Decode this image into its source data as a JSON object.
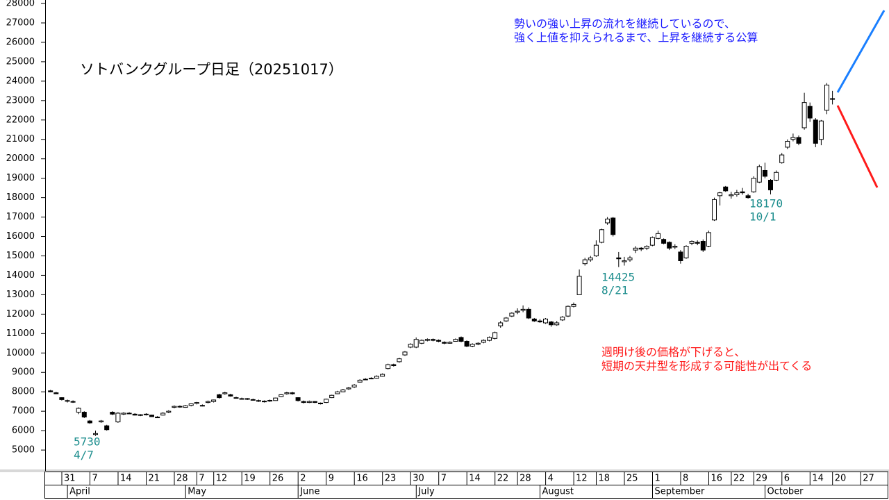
{
  "chart_data": {
    "type": "candlestick",
    "title": "ソトバンクグループ日足（20251017）",
    "annotations": [
      [
        "5730",
        "4/7"
      ],
      [
        "14425",
        "8/21"
      ],
      [
        "18170",
        "10/1"
      ]
    ],
    "comment_up": [
      "勢いの強い上昇の流れを継続しているので、",
      "強く上値を抑えられるまで、上昇を継続する公算"
    ],
    "comment_down": [
      "週明け後の価格が下げると、",
      "短期の天井型を形成する可能性が出てくる"
    ],
    "categories": [
      "3/26",
      "3/27",
      "3/28",
      "3/31",
      "4/1",
      "4/2",
      "4/3",
      "4/4",
      "4/7",
      "4/8",
      "4/9",
      "4/10",
      "4/11",
      "4/14",
      "4/15",
      "4/16",
      "4/17",
      "4/18",
      "4/21",
      "4/22",
      "4/23",
      "4/24",
      "4/25",
      "4/28",
      "4/30",
      "5/1",
      "5/2",
      "5/7",
      "5/8",
      "5/9",
      "5/12",
      "5/13",
      "5/14",
      "5/15",
      "5/16",
      "5/19",
      "5/20",
      "5/21",
      "5/22",
      "5/23",
      "5/26",
      "5/27",
      "5/28",
      "5/29",
      "5/30",
      "6/2",
      "6/3",
      "6/4",
      "6/5",
      "6/6",
      "6/9",
      "6/10",
      "6/11",
      "6/12",
      "6/13",
      "6/16",
      "6/17",
      "6/18",
      "6/19",
      "6/20",
      "6/23",
      "6/24",
      "6/25",
      "6/26",
      "6/27",
      "6/30",
      "7/1",
      "7/2",
      "7/3",
      "7/4",
      "7/7",
      "7/8",
      "7/9",
      "7/10",
      "7/11",
      "7/14",
      "7/15",
      "7/16",
      "7/17",
      "7/18",
      "7/22",
      "7/23",
      "7/24",
      "7/25",
      "7/28",
      "7/29",
      "7/30",
      "7/31",
      "8/1",
      "8/4",
      "8/5",
      "8/6",
      "8/7",
      "8/8",
      "8/12",
      "8/13",
      "8/14",
      "8/15",
      "8/18",
      "8/19",
      "8/20",
      "8/21",
      "8/22",
      "8/25",
      "8/26",
      "8/27",
      "8/28",
      "8/29",
      "9/1",
      "9/2",
      "9/3",
      "9/4",
      "9/5",
      "9/8",
      "9/9",
      "9/10",
      "9/11",
      "9/12",
      "9/16",
      "9/17",
      "9/18",
      "9/19",
      "9/22",
      "9/24",
      "9/25",
      "9/26",
      "9/29",
      "9/30",
      "10/1",
      "10/2",
      "10/3",
      "10/6",
      "10/7",
      "10/8",
      "10/9",
      "10/10",
      "10/14",
      "10/15",
      "10/16",
      "10/17",
      "10/20",
      "10/21",
      "10/22",
      "10/23",
      "10/24",
      "10/27",
      "10/28",
      "10/29",
      "10/30",
      "10/31"
    ],
    "open": [
      8050,
      7950,
      7700,
      7550,
      7500,
      6950,
      6950,
      6500,
      5800,
      6450,
      6250,
      6950,
      6450,
      6850,
      6900,
      6850,
      6800,
      6820,
      6800,
      6700,
      6800,
      6950,
      7200,
      7250,
      7200,
      7300,
      7400,
      7300,
      7450,
      7500,
      7850,
      7900,
      7850,
      7700,
      7650,
      7620,
      7600,
      7550,
      7500,
      7520,
      7550,
      7750,
      7900,
      7950,
      7700,
      7500,
      7450,
      7500,
      7420,
      7450,
      7700,
      7900,
      8000,
      8150,
      8250,
      8500,
      8650,
      8680,
      8700,
      8800,
      9200,
      9400,
      9550,
      9900,
      10300,
      10300,
      10500,
      10650,
      10700,
      10650,
      10550,
      10500,
      10600,
      10800,
      10600,
      10350,
      10450,
      10550,
      10650,
      10750,
      11400,
      11650,
      11900,
      12100,
      12200,
      12250,
      11750,
      11650,
      11550,
      11600,
      11450,
      11700,
      11900,
      12400,
      13000,
      14600,
      14800,
      15000,
      15700,
      16700,
      16950,
      14900,
      14700,
      14800,
      15300,
      15400,
      15400,
      15550,
      15900,
      15850,
      15700,
      15450,
      15200,
      14900,
      15650,
      15700,
      15750,
      15500,
      16850,
      18100,
      18550,
      18100,
      18150,
      18300,
      18100,
      18300,
      18800,
      19400,
      18900,
      18900,
      19800,
      20600,
      21000,
      21100,
      21600,
      22700,
      22000,
      21000,
      22500,
      23100,
      null,
      null,
      null,
      null,
      null,
      null,
      null,
      null,
      null,
      null
    ],
    "high": [
      8100,
      8000,
      7720,
      7600,
      7560,
      7200,
      7000,
      6550,
      6000,
      6550,
      6300,
      7000,
      6950,
      6950,
      6950,
      6900,
      6850,
      6900,
      6820,
      6750,
      6950,
      7050,
      7300,
      7300,
      7320,
      7400,
      7480,
      7350,
      7550,
      7600,
      7900,
      8000,
      7900,
      7750,
      7700,
      7680,
      7650,
      7600,
      7560,
      7600,
      7700,
      7880,
      8000,
      8000,
      7720,
      7550,
      7550,
      7520,
      7450,
      7650,
      7850,
      8050,
      8150,
      8250,
      8400,
      8650,
      8700,
      8750,
      8850,
      8950,
      9450,
      9450,
      9750,
      10100,
      10500,
      10800,
      10700,
      10750,
      10750,
      10700,
      10600,
      10600,
      10750,
      10850,
      10650,
      10500,
      10550,
      10700,
      10850,
      11100,
      11650,
      11850,
      12100,
      12300,
      12450,
      12350,
      11800,
      11750,
      11800,
      11650,
      11650,
      11900,
      12450,
      12600,
      14300,
      14900,
      15000,
      15800,
      16400,
      17000,
      17000,
      15200,
      14950,
      15000,
      15500,
      15450,
      15550,
      16000,
      16300,
      15900,
      15750,
      15600,
      15300,
      15550,
      15800,
      15800,
      15850,
      16300,
      18000,
      18300,
      18600,
      18300,
      18400,
      18500,
      18200,
      19100,
      19700,
      19800,
      18950,
      19400,
      20300,
      21000,
      21300,
      21200,
      23400,
      22900,
      22100,
      22000,
      23900,
      23500,
      null,
      null,
      null,
      null,
      null,
      null,
      null,
      null,
      null,
      null
    ],
    "low": [
      7980,
      7880,
      7550,
      7450,
      7430,
      6850,
      6650,
      6350,
      5730,
      6400,
      6000,
      6800,
      6400,
      6800,
      6850,
      6780,
      6750,
      6780,
      6700,
      6650,
      6780,
      6900,
      7150,
      7180,
      7180,
      7250,
      7350,
      7250,
      7400,
      7450,
      7650,
      7850,
      7750,
      7650,
      7600,
      7580,
      7550,
      7480,
      7450,
      7480,
      7540,
      7720,
      7850,
      7850,
      7500,
      7400,
      7420,
      7420,
      7350,
      7420,
      7680,
      7880,
      7980,
      8100,
      8200,
      8480,
      8600,
      8650,
      8680,
      8780,
      9150,
      9300,
      9500,
      9850,
      10250,
      10250,
      10450,
      10600,
      10600,
      10550,
      10450,
      10480,
      10580,
      10550,
      10300,
      10300,
      10400,
      10500,
      10600,
      10700,
      11300,
      11600,
      11850,
      12000,
      12100,
      11750,
      11600,
      11550,
      11500,
      11350,
      11400,
      11650,
      11850,
      12350,
      13000,
      14500,
      14700,
      14950,
      15650,
      16600,
      16000,
      14425,
      14500,
      14700,
      15150,
      15250,
      15300,
      15500,
      15850,
      15600,
      15300,
      15350,
      14600,
      14850,
      15550,
      15550,
      15200,
      15450,
      16800,
      17600,
      18300,
      17950,
      18050,
      18150,
      17950,
      18250,
      18750,
      19000,
      18170,
      18850,
      19750,
      20500,
      20900,
      20700,
      21500,
      21900,
      20600,
      20700,
      22300,
      22800,
      null,
      null,
      null,
      null,
      null,
      null,
      null,
      null,
      null,
      null
    ],
    "close": [
      8000,
      7900,
      7600,
      7520,
      7480,
      7150,
      6700,
      6400,
      5850,
      6500,
      6050,
      6850,
      6900,
      6900,
      6880,
      6800,
      6820,
      6850,
      6720,
      6680,
      6900,
      7000,
      7250,
      7230,
      7280,
      7380,
      7450,
      7280,
      7500,
      7580,
      7700,
      7950,
      7780,
      7680,
      7640,
      7650,
      7580,
      7520,
      7520,
      7560,
      7680,
      7850,
      7950,
      7900,
      7550,
      7450,
      7500,
      7450,
      7380,
      7620,
      7820,
      8000,
      8100,
      8200,
      8350,
      8600,
      8650,
      8700,
      8800,
      8900,
      9400,
      9350,
      9700,
      10050,
      10450,
      10700,
      10650,
      10700,
      10650,
      10600,
      10500,
      10550,
      10700,
      10600,
      10350,
      10450,
      10500,
      10650,
      10800,
      11050,
      11550,
      11800,
      12050,
      12150,
      12250,
      11800,
      11650,
      11600,
      11750,
      11450,
      11550,
      11850,
      12400,
      12500,
      13950,
      14800,
      14900,
      15550,
      16350,
      16900,
      16100,
      14850,
      14750,
      14900,
      15400,
      15350,
      15500,
      15950,
      16150,
      15650,
      15400,
      15500,
      14750,
      15500,
      15750,
      15650,
      15300,
      16200,
      17900,
      18250,
      18350,
      18150,
      18250,
      18250,
      18000,
      19000,
      19600,
      19100,
      18400,
      19300,
      20200,
      20900,
      21100,
      20800,
      22900,
      22100,
      20800,
      21950,
      23800,
      23100,
      null,
      null,
      null,
      null,
      null,
      null,
      null,
      null,
      null,
      null
    ],
    "up_color": "#ffffff",
    "down_color": "#000000",
    "ylim": [
      3930,
      28180
    ],
    "yticks": [
      5000,
      6000,
      7000,
      8000,
      9000,
      10000,
      11000,
      12000,
      13000,
      14000,
      15000,
      16000,
      17000,
      18000,
      19000,
      20000,
      21000,
      22000,
      23000,
      24000,
      25000,
      26000,
      27000,
      28000
    ],
    "xticks": [
      {
        "value": "3/31",
        "label": "31"
      },
      {
        "value": "4/7",
        "label": "7"
      },
      {
        "value": "4/14",
        "label": "14"
      },
      {
        "value": "4/21",
        "label": "21"
      },
      {
        "value": "4/28",
        "label": "28"
      },
      {
        "value": "5/7",
        "label": "7"
      },
      {
        "value": "5/12",
        "label": "12"
      },
      {
        "value": "5/19",
        "label": "19"
      },
      {
        "value": "5/26",
        "label": "26"
      },
      {
        "value": "6/2",
        "label": "2"
      },
      {
        "value": "6/9",
        "label": "9"
      },
      {
        "value": "6/16",
        "label": "16"
      },
      {
        "value": "6/23",
        "label": "23"
      },
      {
        "value": "6/30",
        "label": "30"
      },
      {
        "value": "7/7",
        "label": "7"
      },
      {
        "value": "7/14",
        "label": "14"
      },
      {
        "value": "7/22",
        "label": "22"
      },
      {
        "value": "7/28",
        "label": "28"
      },
      {
        "value": "8/4",
        "label": "4"
      },
      {
        "value": "8/12",
        "label": "12"
      },
      {
        "value": "8/18",
        "label": "18"
      },
      {
        "value": "8/25",
        "label": "25"
      },
      {
        "value": "9/1",
        "label": "1"
      },
      {
        "value": "9/8",
        "label": "8"
      },
      {
        "value": "9/16",
        "label": "16"
      },
      {
        "value": "9/22",
        "label": "22"
      },
      {
        "value": "9/29",
        "label": "29"
      },
      {
        "value": "10/6",
        "label": "6"
      },
      {
        "value": "10/14",
        "label": "14"
      },
      {
        "value": "10/20",
        "label": "20"
      },
      {
        "value": "10/27",
        "label": "27"
      }
    ],
    "months": [
      {
        "value": "4/1",
        "label": "April"
      },
      {
        "value": "5/1",
        "label": "May"
      },
      {
        "value": "6/2",
        "label": "June"
      },
      {
        "value": "7/1",
        "label": "July"
      },
      {
        "value": "8/1",
        "label": "August"
      },
      {
        "value": "9/1",
        "label": "September"
      },
      {
        "value": "10/1",
        "label": "October"
      }
    ]
  }
}
